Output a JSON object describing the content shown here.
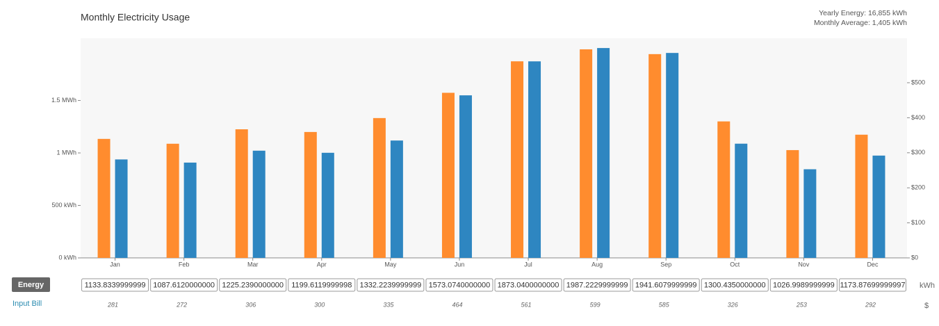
{
  "chart_data": {
    "type": "bar",
    "title": "Monthly Electricity Usage",
    "summary": [
      "Yearly Energy: 16,855 kWh",
      "Monthly Average: 1,405 kWh"
    ],
    "categories": [
      "Jan",
      "Feb",
      "Mar",
      "Apr",
      "May",
      "Jun",
      "Jul",
      "Aug",
      "Sep",
      "Oct",
      "Nov",
      "Dec"
    ],
    "series": [
      {
        "name": "Energy",
        "unit": "kWh",
        "color": "#ff8c2e",
        "values": [
          1133.8339999999,
          1087.612,
          1225.239,
          1199.6119999998,
          1332.2239999999,
          1573.074,
          1873.04,
          1987.2229999999,
          1941.6079999999,
          1300.435,
          1026.9989999999,
          1173.87699999997
        ],
        "value_labels": [
          "1133.8339999999",
          "1087.6120000000",
          "1225.2390000000",
          "1199.6119999998",
          "1332.2239999999",
          "1573.0740000000",
          "1873.0400000000",
          "1987.2229999999",
          "1941.6079999999",
          "1300.4350000000",
          "1026.9989999999",
          "1173.87699999997"
        ]
      },
      {
        "name": "Input Bill",
        "unit": "$",
        "color": "#2e86c1",
        "axis": "y2",
        "values": [
          281,
          272,
          306,
          300,
          335,
          464,
          561,
          599,
          585,
          326,
          253,
          292
        ]
      }
    ],
    "ylim": [
      0,
      2093
    ],
    "yticks": [
      {
        "value": 0,
        "label": "0 kWh"
      },
      {
        "value": 500,
        "label": "500 kWh"
      },
      {
        "value": 1000,
        "label": "1 MWh"
      },
      {
        "value": 1500,
        "label": "1.5 MWh"
      }
    ],
    "y2lim": [
      0,
      627
    ],
    "y2ticks": [
      {
        "value": 0,
        "label": "$0"
      },
      {
        "value": 100,
        "label": "$100"
      },
      {
        "value": 200,
        "label": "$200"
      },
      {
        "value": 300,
        "label": "$300"
      },
      {
        "value": 400,
        "label": "$400"
      },
      {
        "value": 500,
        "label": "$500"
      }
    ]
  }
}
